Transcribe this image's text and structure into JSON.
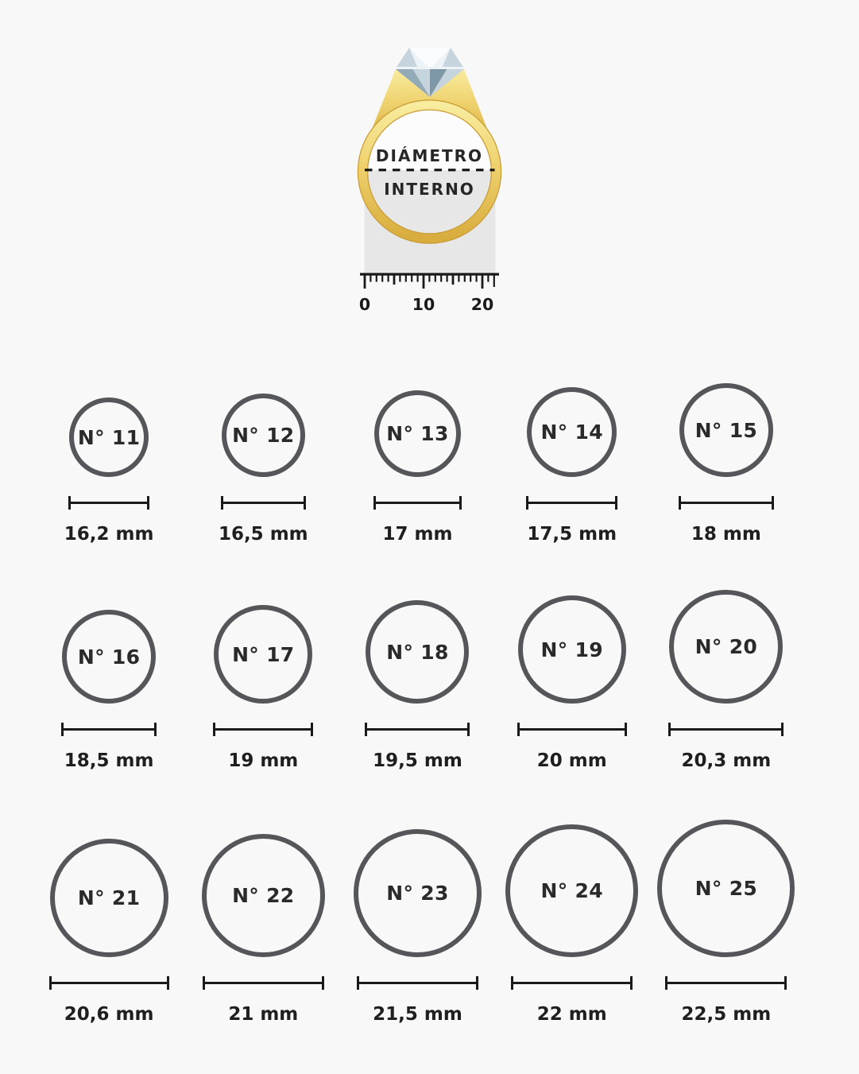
{
  "colors": {
    "background": "#f8f8f8",
    "circle_stroke": "#545659",
    "text_dark": "#1f1f1f",
    "line_black": "#1a1a1a",
    "gold_light": "#F8EC9F",
    "gold_mid": "#EFD26E",
    "gold": "#D8AC3D",
    "gold_dark": "#C99C33",
    "gray_panel": "#E7E7E7",
    "diamond_white": "#FAFCFD",
    "diamond_light": "#EDF3F6",
    "diamond_mid": "#C5D4DD",
    "diamond_dark": "#93AAB8",
    "diamond_deep": "#7E97A6"
  },
  "illustration": {
    "caption_line1": "DIÁMETRO",
    "caption_line2": "INTERNO",
    "ruler": {
      "labels": [
        "0",
        "10",
        "20"
      ]
    }
  },
  "sizes": [
    {
      "label": "N° 11",
      "mm": "16,2 mm"
    },
    {
      "label": "N° 12",
      "mm": "16,5 mm"
    },
    {
      "label": "N° 13",
      "mm": "17 mm"
    },
    {
      "label": "N° 14",
      "mm": "17,5 mm"
    },
    {
      "label": "N° 15",
      "mm": "18 mm"
    },
    {
      "label": "N° 16",
      "mm": "18,5 mm"
    },
    {
      "label": "N° 17",
      "mm": "19 mm"
    },
    {
      "label": "N° 18",
      "mm": "19,5 mm"
    },
    {
      "label": "N° 19",
      "mm": "20 mm"
    },
    {
      "label": "N° 20",
      "mm": "20,3 mm"
    },
    {
      "label": "N° 21",
      "mm": "20,6 mm"
    },
    {
      "label": "N° 22",
      "mm": "21 mm"
    },
    {
      "label": "N° 23",
      "mm": "21,5 mm"
    },
    {
      "label": "N° 24",
      "mm": "22 mm"
    },
    {
      "label": "N° 25",
      "mm": "22,5 mm"
    }
  ]
}
